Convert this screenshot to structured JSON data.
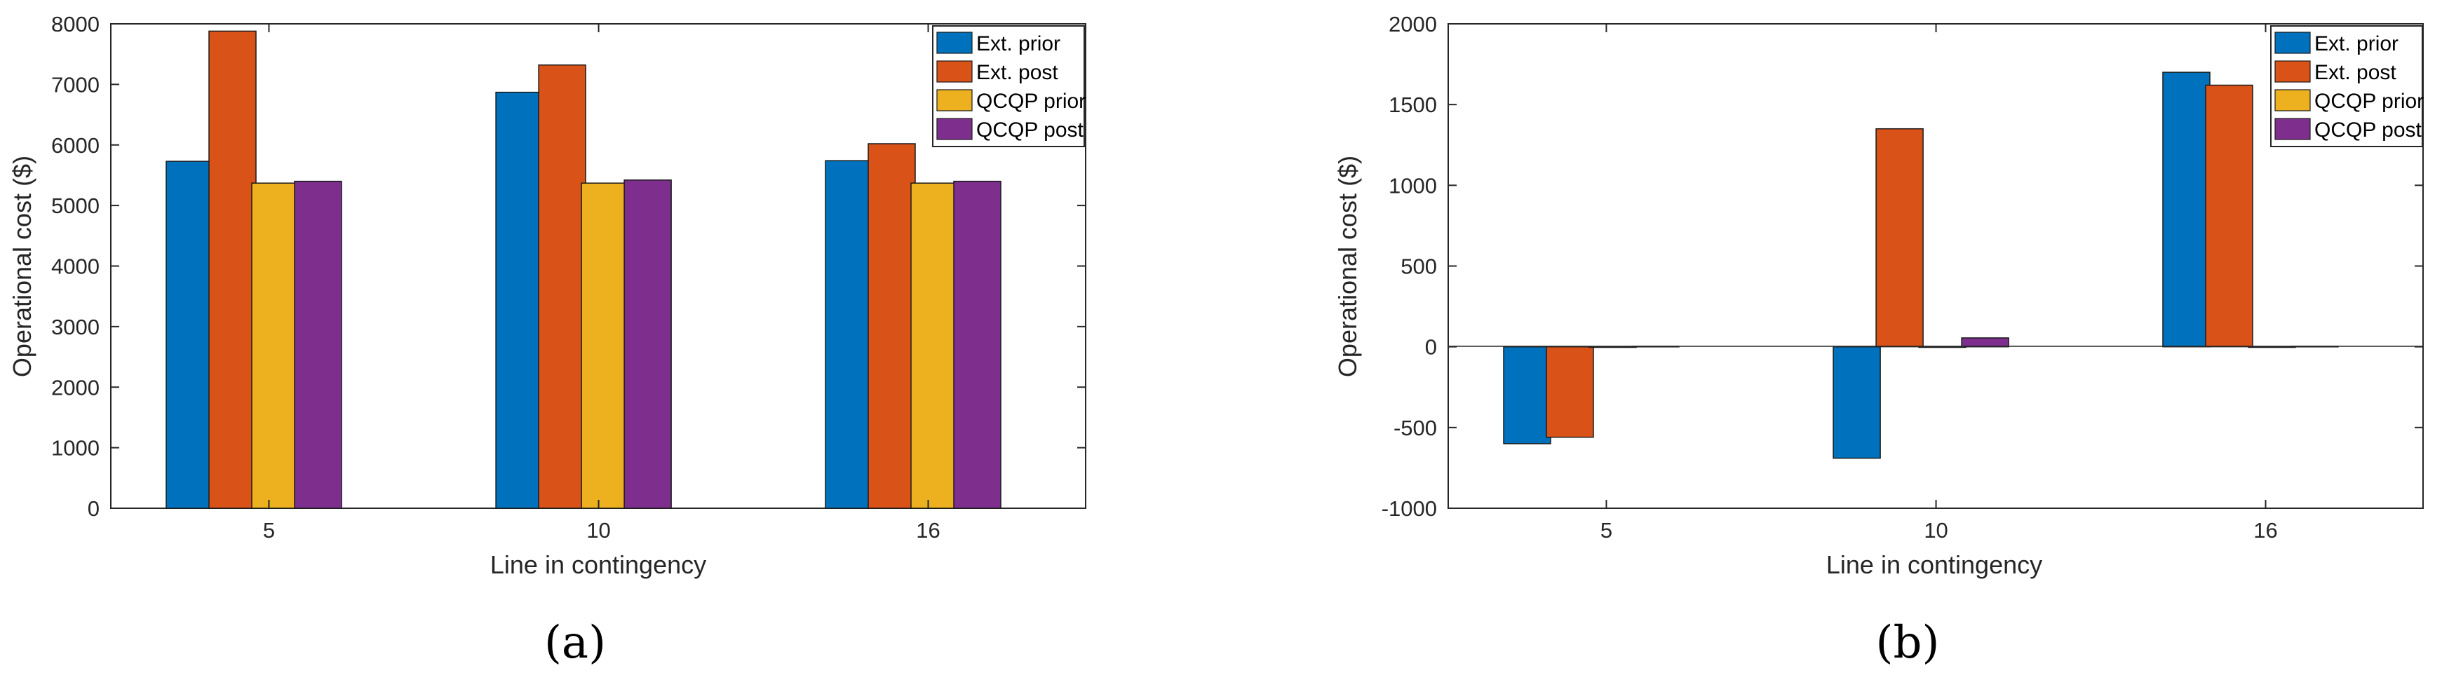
{
  "panels": [
    {
      "label": "(a)",
      "chart_data": {
        "type": "bar",
        "categories": [
          "5",
          "10",
          "16"
        ],
        "xlabel": "Line in contingency",
        "ylabel": "Operational cost ($)",
        "ylim": [
          0,
          8000
        ],
        "yticks": [
          0,
          1000,
          2000,
          3000,
          4000,
          5000,
          6000,
          7000,
          8000
        ],
        "legend_position": "top-right",
        "series": [
          {
            "name": "Ext. prior",
            "color": "#0072BD",
            "values": [
              5730,
              6870,
              5740
            ]
          },
          {
            "name": "Ext. post",
            "color": "#D95319",
            "values": [
              7880,
              7320,
              6020
            ]
          },
          {
            "name": "QCQP prior",
            "color": "#EDB120",
            "values": [
              5370,
              5370,
              5370
            ]
          },
          {
            "name": "QCQP post",
            "color": "#7E2F8E",
            "values": [
              5400,
              5420,
              5400
            ]
          }
        ]
      }
    },
    {
      "label": "(b)",
      "chart_data": {
        "type": "bar",
        "categories": [
          "5",
          "10",
          "16"
        ],
        "xlabel": "Line in contingency",
        "ylabel": "Operational cost ($)",
        "ylim": [
          -1000,
          2000
        ],
        "yticks": [
          -1000,
          -500,
          0,
          500,
          1000,
          1500,
          2000
        ],
        "legend_position": "top-right",
        "series": [
          {
            "name": "Ext. prior",
            "color": "#0072BD",
            "values": [
              -600,
              -690,
              1700
            ]
          },
          {
            "name": "Ext. post",
            "color": "#D95319",
            "values": [
              -560,
              1350,
              1620
            ]
          },
          {
            "name": "QCQP prior",
            "color": "#EDB120",
            "values": [
              0,
              0,
              0
            ]
          },
          {
            "name": "QCQP post",
            "color": "#7E2F8E",
            "values": [
              3,
              55,
              3
            ]
          }
        ]
      }
    }
  ]
}
